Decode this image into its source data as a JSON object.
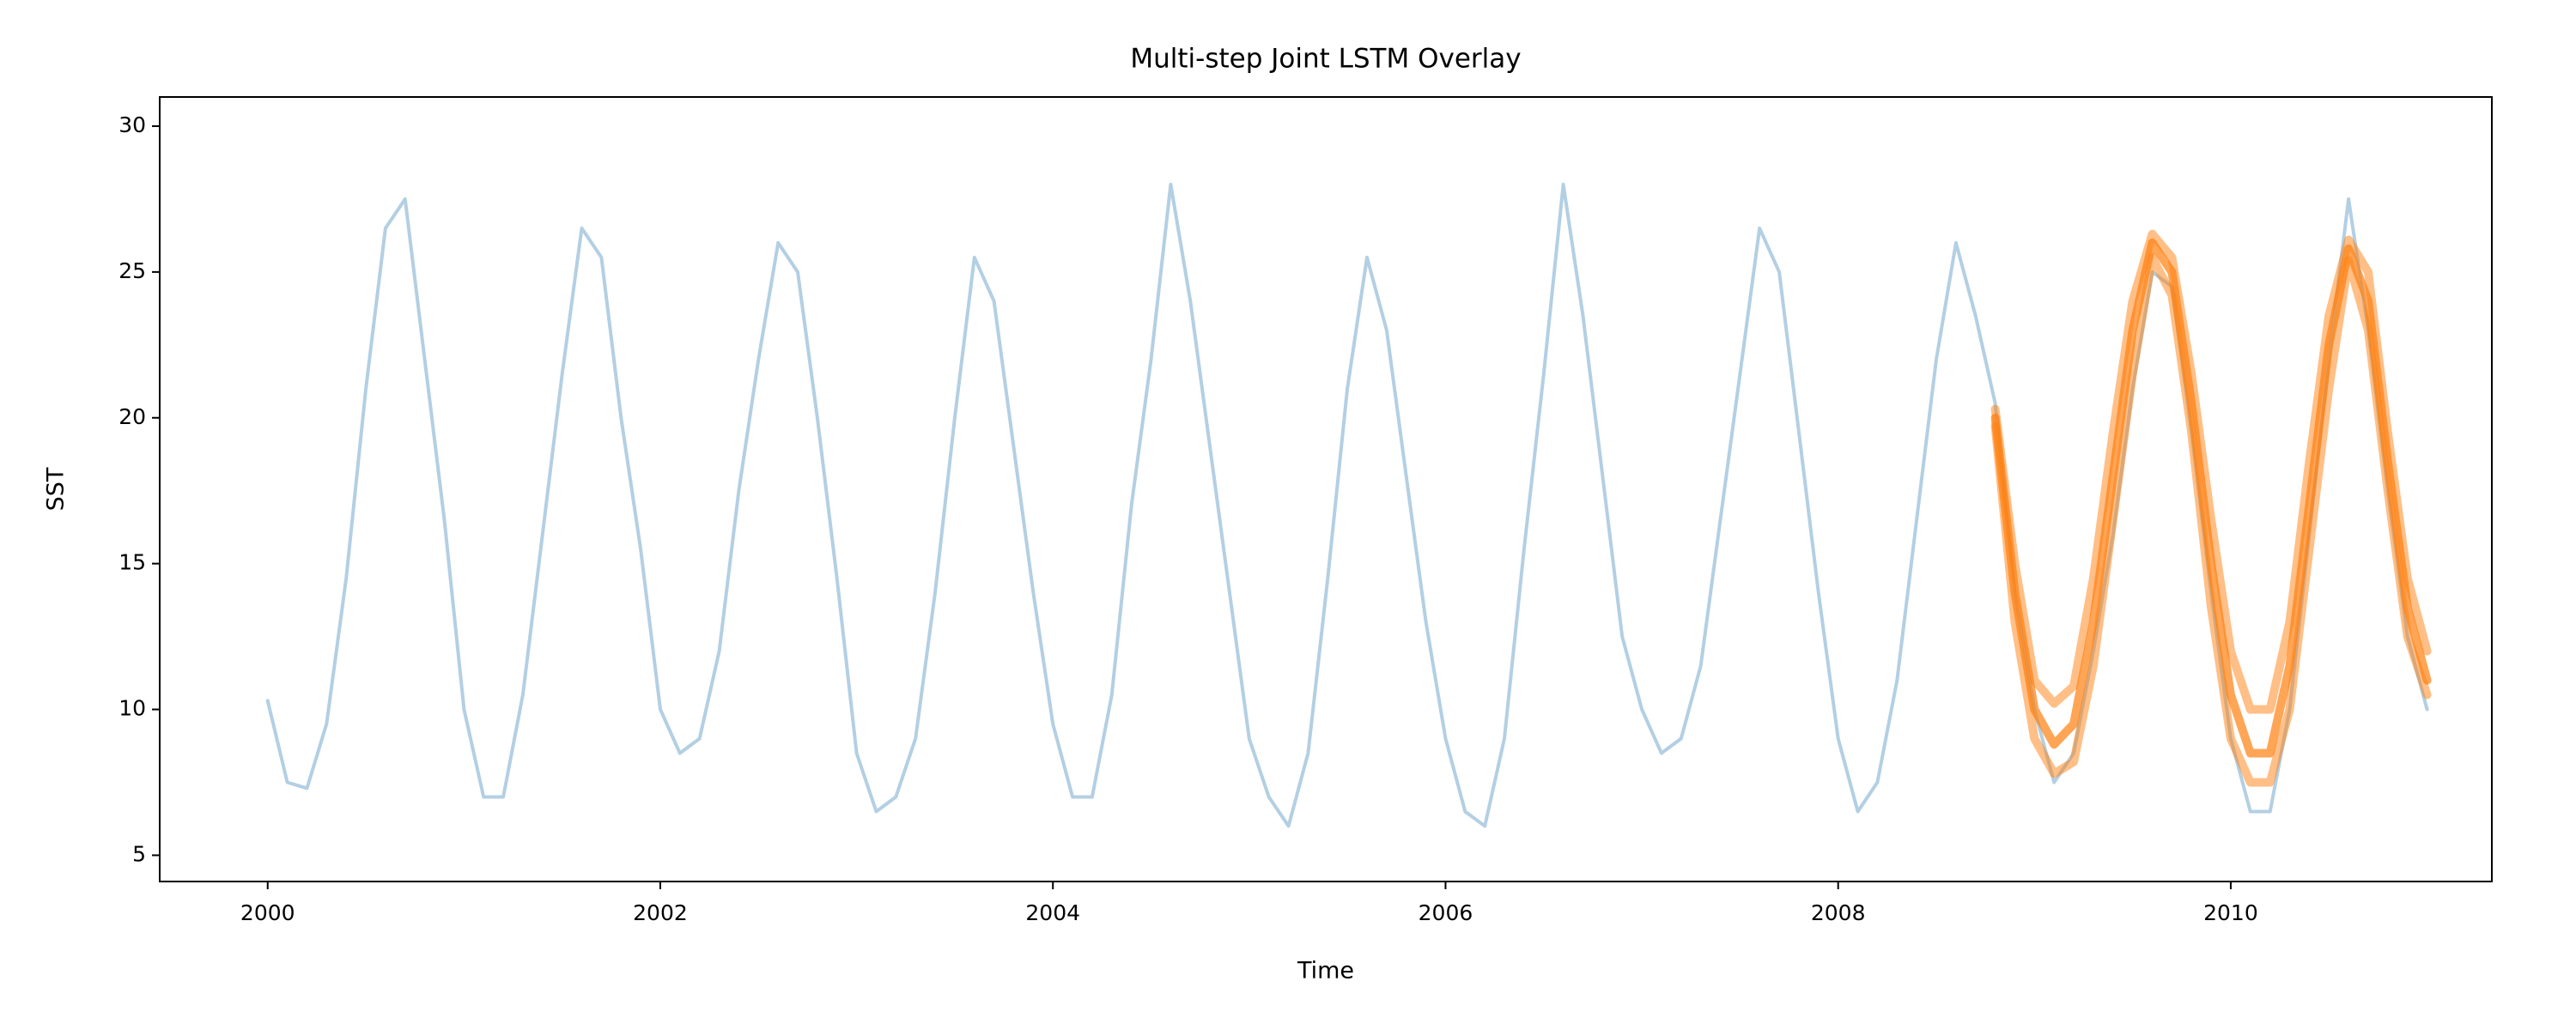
{
  "chart_data": {
    "type": "line",
    "title": "Multi-step Joint LSTM Overlay",
    "xlabel": "Time",
    "ylabel": "SST",
    "x": [
      2000.0,
      2000.1,
      2000.2,
      2000.3,
      2000.4,
      2000.5,
      2000.6,
      2000.7,
      2000.8,
      2000.9,
      2001.0,
      2001.1,
      2001.2,
      2001.3,
      2001.4,
      2001.5,
      2001.6,
      2001.7,
      2001.8,
      2001.9,
      2002.0,
      2002.1,
      2002.2,
      2002.3,
      2002.4,
      2002.5,
      2002.6,
      2002.7,
      2002.8,
      2002.9,
      2003.0,
      2003.1,
      2003.2,
      2003.3,
      2003.4,
      2003.5,
      2003.6,
      2003.7,
      2003.8,
      2003.9,
      2004.0,
      2004.1,
      2004.2,
      2004.3,
      2004.4,
      2004.5,
      2004.6,
      2004.7,
      2004.8,
      2004.9,
      2005.0,
      2005.1,
      2005.2,
      2005.3,
      2005.4,
      2005.5,
      2005.6,
      2005.7,
      2005.8,
      2005.9,
      2006.0,
      2006.1,
      2006.2,
      2006.3,
      2006.4,
      2006.5,
      2006.6,
      2006.7,
      2006.8,
      2006.9,
      2007.0,
      2007.1,
      2007.2,
      2007.3,
      2007.4,
      2007.5,
      2007.6,
      2007.7,
      2007.8,
      2007.9,
      2008.0,
      2008.1,
      2008.2,
      2008.3,
      2008.4,
      2008.5,
      2008.6,
      2008.7,
      2008.8,
      2008.9,
      2009.0,
      2009.1,
      2009.2,
      2009.3,
      2009.4,
      2009.5,
      2009.6,
      2009.7,
      2009.8,
      2009.9,
      2010.0,
      2010.1,
      2010.2,
      2010.3,
      2010.4,
      2010.5,
      2010.6,
      2010.7,
      2010.8,
      2010.9,
      2011.0
    ],
    "series": [
      {
        "color": "#b3cfe3",
        "opacity": 1,
        "values": [
          10.3,
          7.5,
          7.3,
          9.5,
          14.5,
          21,
          26.5,
          27.5,
          22,
          16.5,
          10,
          7,
          7,
          10.5,
          16,
          21.5,
          26.5,
          25.5,
          20,
          15.5,
          10,
          8.5,
          9,
          12,
          17.5,
          22,
          26,
          25,
          20,
          14.5,
          8.5,
          6.5,
          7,
          9,
          14,
          20,
          25.5,
          24,
          19,
          14,
          9.5,
          7,
          7,
          10.5,
          17,
          22,
          28,
          24,
          19,
          14,
          9,
          7,
          6,
          8.5,
          14.5,
          21,
          25.5,
          23,
          18,
          13,
          9,
          6.5,
          6,
          9,
          15.5,
          21.5,
          28,
          23.5,
          18,
          12.5,
          10,
          8.5,
          9,
          11.5,
          16.5,
          21.5,
          26.5,
          25,
          19.5,
          14,
          9,
          6.5,
          7.5,
          11,
          16.5,
          22,
          26,
          23.5,
          20.5,
          14,
          10,
          7.5,
          8.5,
          12,
          16,
          21,
          25,
          24.5,
          19.5,
          14,
          9,
          6.5,
          6.5,
          10,
          16,
          22,
          27.5,
          23,
          17.5,
          12.5,
          10
        ]
      },
      {
        "color": "#ff7f0e",
        "opacity": 0.5,
        "values": [
          null,
          null,
          null,
          null,
          null,
          null,
          null,
          null,
          null,
          null,
          null,
          null,
          null,
          null,
          null,
          null,
          null,
          null,
          null,
          null,
          null,
          null,
          null,
          null,
          null,
          null,
          null,
          null,
          null,
          null,
          null,
          null,
          null,
          null,
          null,
          null,
          null,
          null,
          null,
          null,
          null,
          null,
          null,
          null,
          null,
          null,
          null,
          null,
          null,
          null,
          null,
          null,
          null,
          null,
          null,
          null,
          null,
          null,
          null,
          null,
          null,
          null,
          null,
          null,
          null,
          null,
          null,
          null,
          null,
          null,
          null,
          null,
          null,
          null,
          null,
          null,
          null,
          null,
          null,
          null,
          null,
          null,
          null,
          null,
          null,
          null,
          null,
          null,
          20.3,
          15,
          11,
          10.2,
          10.8,
          14.5,
          19.5,
          24,
          26.3,
          25.5,
          21.5,
          16.5,
          12,
          10,
          10,
          13,
          18.5,
          23.5,
          26.1,
          25,
          19.5,
          14.5,
          12
        ]
      },
      {
        "color": "#ff7f0e",
        "opacity": 0.7,
        "values": [
          null,
          null,
          null,
          null,
          null,
          null,
          null,
          null,
          null,
          null,
          null,
          null,
          null,
          null,
          null,
          null,
          null,
          null,
          null,
          null,
          null,
          null,
          null,
          null,
          null,
          null,
          null,
          null,
          null,
          null,
          null,
          null,
          null,
          null,
          null,
          null,
          null,
          null,
          null,
          null,
          null,
          null,
          null,
          null,
          null,
          null,
          null,
          null,
          null,
          null,
          null,
          null,
          null,
          null,
          null,
          null,
          null,
          null,
          null,
          null,
          null,
          null,
          null,
          null,
          null,
          null,
          null,
          null,
          null,
          null,
          null,
          null,
          null,
          null,
          null,
          null,
          null,
          null,
          null,
          null,
          null,
          null,
          null,
          null,
          null,
          null,
          null,
          null,
          20,
          14,
          10,
          8.8,
          9.5,
          13,
          18,
          23,
          26,
          25,
          20.5,
          15,
          10.5,
          8.5,
          8.5,
          11.5,
          17,
          22.5,
          25.8,
          24,
          18.5,
          13.5,
          11
        ]
      },
      {
        "color": "#ff7f0e",
        "opacity": 0.5,
        "values": [
          null,
          null,
          null,
          null,
          null,
          null,
          null,
          null,
          null,
          null,
          null,
          null,
          null,
          null,
          null,
          null,
          null,
          null,
          null,
          null,
          null,
          null,
          null,
          null,
          null,
          null,
          null,
          null,
          null,
          null,
          null,
          null,
          null,
          null,
          null,
          null,
          null,
          null,
          null,
          null,
          null,
          null,
          null,
          null,
          null,
          null,
          null,
          null,
          null,
          null,
          null,
          null,
          null,
          null,
          null,
          null,
          null,
          null,
          null,
          null,
          null,
          null,
          null,
          null,
          null,
          null,
          null,
          null,
          null,
          null,
          null,
          null,
          null,
          null,
          null,
          null,
          null,
          null,
          null,
          null,
          null,
          null,
          null,
          null,
          null,
          null,
          null,
          null,
          19.7,
          13,
          9,
          7.8,
          8.2,
          11.5,
          16.5,
          21.5,
          25.5,
          24.2,
          19.5,
          13.5,
          9,
          7.5,
          7.5,
          10,
          15.5,
          21,
          25.4,
          23,
          17.5,
          12.5,
          10.5
        ]
      }
    ],
    "xlim": [
      1999.45,
      2011.33
    ],
    "xticks": [
      2000,
      2002,
      2004,
      2006,
      2008,
      2010
    ],
    "ylim": [
      4.1,
      31.0
    ],
    "yticks": [
      5,
      10,
      15,
      20,
      25,
      30
    ],
    "grid": false
  }
}
